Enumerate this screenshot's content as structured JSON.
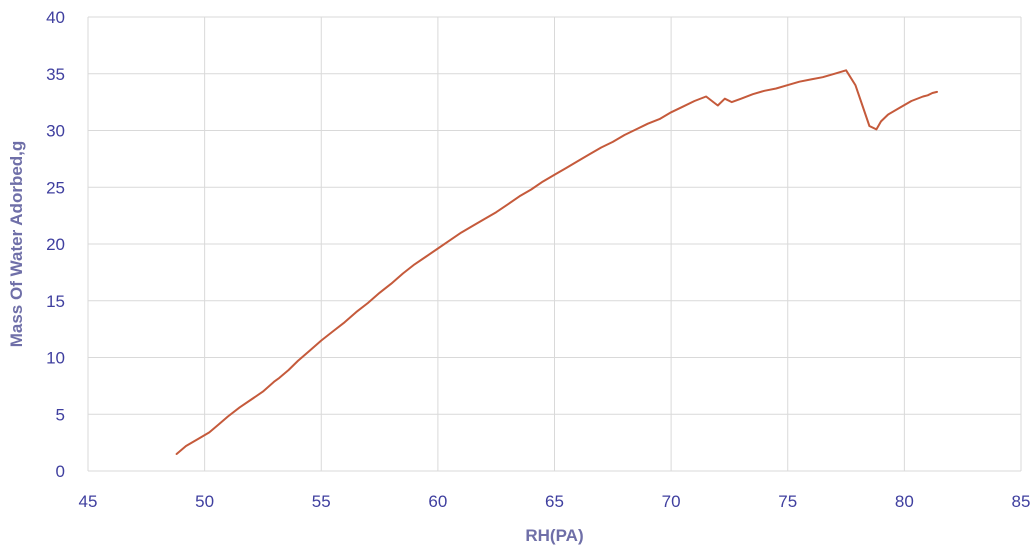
{
  "chart_data": {
    "type": "line",
    "title": "",
    "xlabel": "RH(PA)",
    "ylabel": "Mass Of Water Adorbed,g",
    "xlim": [
      45,
      85
    ],
    "ylim": [
      0,
      40
    ],
    "x_ticks": [
      "45",
      "50",
      "55",
      "60",
      "65",
      "70",
      "75",
      "80",
      "85"
    ],
    "y_ticks": [
      "0",
      "5",
      "10",
      "15",
      "20",
      "25",
      "30",
      "35",
      "40"
    ],
    "grid": true,
    "legend": "none",
    "colors": {
      "line": "#C55A3B",
      "grid": "#D9D9D9",
      "axis_text": "#3F3F9F",
      "axis_title": "#6F6FA8"
    },
    "series": [
      {
        "x": [
          48.8,
          49.2,
          49.7,
          50.2,
          50.6,
          51.0,
          51.5,
          52.0,
          52.5,
          53.0,
          53.2,
          53.6,
          54.0,
          54.5,
          55.0,
          55.5,
          56.0,
          56.5,
          57.0,
          57.5,
          58.0,
          58.5,
          59.0,
          59.5,
          60.0,
          60.5,
          61.0,
          61.5,
          62.0,
          62.5,
          63.0,
          63.5,
          64.0,
          64.5,
          65.0,
          65.5,
          66.0,
          66.5,
          67.0,
          67.5,
          68.0,
          68.5,
          69.0,
          69.5,
          70.0,
          70.5,
          71.0,
          71.5,
          72.0,
          72.3,
          72.6,
          73.0,
          73.5,
          74.0,
          74.5,
          75.0,
          75.5,
          76.0,
          76.5,
          77.0,
          77.5,
          77.9,
          78.2,
          78.5,
          78.8,
          79.0,
          79.3,
          79.8,
          80.3,
          80.8,
          81.0,
          81.2,
          81.4
        ],
        "y": [
          1.5,
          2.2,
          2.8,
          3.4,
          4.1,
          4.8,
          5.6,
          6.3,
          7.0,
          7.9,
          8.2,
          8.9,
          9.7,
          10.6,
          11.5,
          12.3,
          13.1,
          14.0,
          14.8,
          15.7,
          16.5,
          17.4,
          18.2,
          18.9,
          19.6,
          20.3,
          21.0,
          21.6,
          22.2,
          22.8,
          23.5,
          24.2,
          24.8,
          25.5,
          26.1,
          26.7,
          27.3,
          27.9,
          28.5,
          29.0,
          29.6,
          30.1,
          30.6,
          31.0,
          31.6,
          32.1,
          32.6,
          33.0,
          32.2,
          32.8,
          32.5,
          32.8,
          33.2,
          33.5,
          33.7,
          34.0,
          34.3,
          34.5,
          34.7,
          35.0,
          35.3,
          34.0,
          32.2,
          30.4,
          30.1,
          30.8,
          31.4,
          32.0,
          32.6,
          33.0,
          33.1,
          33.3,
          33.4
        ]
      }
    ]
  }
}
